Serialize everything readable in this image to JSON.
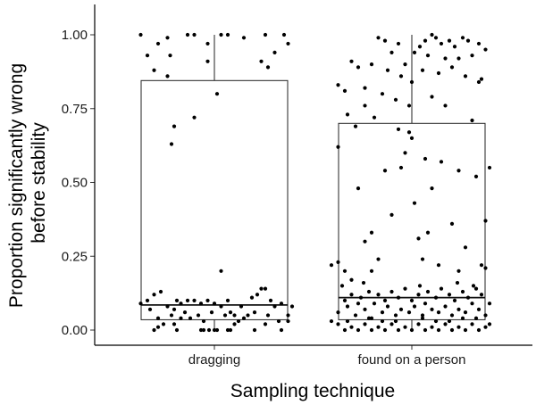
{
  "chart_data": {
    "type": "box",
    "xlabel": "Sampling technique",
    "ylabel_lines": [
      "Proportion significantly wrong",
      "before stability"
    ],
    "ylim": [
      0,
      1
    ],
    "yticks": [
      "0.00",
      "0.25",
      "0.50",
      "0.75",
      "1.00"
    ],
    "grid": false,
    "categories": [
      "dragging",
      "found on a person"
    ],
    "boxes": [
      {
        "category": "dragging",
        "q1": 0.035,
        "median": 0.085,
        "q3": 0.845,
        "whisker_low": 0.0,
        "whisker_high": 1.0
      },
      {
        "category": "found on a person",
        "q1": 0.035,
        "median": 0.11,
        "q3": 0.7,
        "whisker_low": 0.0,
        "whisker_high": 1.0
      }
    ],
    "points": [
      [
        [
          -0.55,
          1.0
        ],
        [
          -0.5,
          0.93
        ],
        [
          -0.42,
          0.97
        ],
        [
          -0.35,
          0.99
        ],
        [
          -0.33,
          0.93
        ],
        [
          -0.2,
          1.0
        ],
        [
          -0.15,
          1.0
        ],
        [
          -0.05,
          0.97
        ],
        [
          0.1,
          1.0
        ],
        [
          0.22,
          0.99
        ],
        [
          0.05,
          1.0
        ],
        [
          0.38,
          1.0
        ],
        [
          0.45,
          0.94
        ],
        [
          0.52,
          1.0
        ],
        [
          0.55,
          0.97
        ],
        [
          0.4,
          0.89
        ],
        [
          -0.45,
          0.88
        ],
        [
          -0.35,
          0.86
        ],
        [
          -0.05,
          0.91
        ],
        [
          0.35,
          0.91
        ],
        [
          0.02,
          0.8
        ],
        [
          -0.3,
          0.69
        ],
        [
          -0.32,
          0.63
        ],
        [
          -0.15,
          0.72
        ],
        [
          0.05,
          0.2
        ],
        [
          -0.55,
          0.09
        ],
        [
          -0.5,
          0.1
        ],
        [
          -0.45,
          0.12
        ],
        [
          -0.4,
          0.13
        ],
        [
          -0.35,
          0.08
        ],
        [
          -0.32,
          0.05
        ],
        [
          -0.3,
          0.07
        ],
        [
          -0.25,
          0.09
        ],
        [
          -0.22,
          0.06
        ],
        [
          -0.2,
          0.1
        ],
        [
          -0.18,
          0.04
        ],
        [
          -0.15,
          0.1
        ],
        [
          -0.12,
          0.05
        ],
        [
          -0.1,
          0.09
        ],
        [
          -0.08,
          0.03
        ],
        [
          -0.05,
          0.1
        ],
        [
          -0.02,
          0.06
        ],
        [
          0.0,
          0.09
        ],
        [
          0.05,
          0.08
        ],
        [
          0.08,
          0.05
        ],
        [
          0.1,
          0.1
        ],
        [
          0.12,
          0.06
        ],
        [
          0.15,
          0.05
        ],
        [
          0.18,
          0.03
        ],
        [
          0.2,
          0.08
        ],
        [
          0.25,
          0.05
        ],
        [
          0.28,
          0.11
        ],
        [
          0.3,
          0.06
        ],
        [
          0.32,
          0.12
        ],
        [
          0.35,
          0.14
        ],
        [
          0.38,
          0.14
        ],
        [
          0.4,
          0.05
        ],
        [
          0.42,
          0.1
        ],
        [
          0.45,
          0.08
        ],
        [
          0.5,
          0.09
        ],
        [
          0.55,
          0.05
        ],
        [
          0.58,
          0.08
        ],
        [
          -0.48,
          0.07
        ],
        [
          -0.42,
          0.04
        ],
        [
          -0.38,
          0.02
        ],
        [
          0.22,
          0.04
        ],
        [
          -0.28,
          0.1
        ],
        [
          -0.45,
          0.0
        ],
        [
          -0.42,
          0.01
        ],
        [
          -0.3,
          0.02
        ],
        [
          -0.28,
          0.0
        ],
        [
          -0.1,
          0.0
        ],
        [
          -0.08,
          0.0
        ],
        [
          -0.04,
          0.0
        ],
        [
          0.0,
          0.0
        ],
        [
          0.02,
          0.0
        ],
        [
          0.1,
          0.0
        ],
        [
          0.12,
          0.0
        ],
        [
          0.3,
          0.0
        ],
        [
          0.5,
          0.0
        ],
        [
          0.55,
          0.03
        ],
        [
          0.48,
          0.03
        ],
        [
          -0.25,
          0.04
        ],
        [
          0.15,
          0.02
        ],
        [
          0.38,
          0.02
        ]
      ],
      [
        [
          -0.25,
          0.99
        ],
        [
          -0.2,
          0.98
        ],
        [
          -0.1,
          0.97
        ],
        [
          0.02,
          0.94
        ],
        [
          0.06,
          0.96
        ],
        [
          0.1,
          0.98
        ],
        [
          0.15,
          1.0
        ],
        [
          0.18,
          0.99
        ],
        [
          0.22,
          0.97
        ],
        [
          0.28,
          0.98
        ],
        [
          0.32,
          0.96
        ],
        [
          0.38,
          0.99
        ],
        [
          0.42,
          0.98
        ],
        [
          0.5,
          0.97
        ],
        [
          0.55,
          0.95
        ],
        [
          0.12,
          0.93
        ],
        [
          -0.15,
          0.94
        ],
        [
          0.35,
          0.92
        ],
        [
          -0.05,
          0.9
        ],
        [
          0.45,
          0.93
        ],
        [
          0.25,
          0.92
        ],
        [
          -0.45,
          0.91
        ],
        [
          -0.4,
          0.89
        ],
        [
          -0.3,
          0.9
        ],
        [
          -0.18,
          0.88
        ],
        [
          -0.08,
          0.86
        ],
        [
          0.0,
          0.84
        ],
        [
          0.08,
          0.88
        ],
        [
          0.2,
          0.87
        ],
        [
          0.3,
          0.89
        ],
        [
          0.4,
          0.86
        ],
        [
          0.52,
          0.85
        ],
        [
          -0.55,
          0.83
        ],
        [
          -0.5,
          0.81
        ],
        [
          -0.35,
          0.82
        ],
        [
          -0.22,
          0.8
        ],
        [
          -0.12,
          0.78
        ],
        [
          -0.02,
          0.76
        ],
        [
          0.15,
          0.79
        ],
        [
          0.5,
          0.84
        ],
        [
          -0.48,
          0.73
        ],
        [
          -0.35,
          0.76
        ],
        [
          -0.28,
          0.72
        ],
        [
          0.25,
          0.76
        ],
        [
          0.45,
          0.71
        ],
        [
          -0.42,
          0.69
        ],
        [
          -0.1,
          0.68
        ],
        [
          -0.02,
          0.67
        ],
        [
          -0.2,
          0.54
        ],
        [
          -0.08,
          0.55
        ],
        [
          -0.05,
          0.6
        ],
        [
          0.0,
          0.65
        ],
        [
          0.1,
          0.58
        ],
        [
          0.15,
          0.48
        ],
        [
          0.22,
          0.57
        ],
        [
          0.35,
          0.54
        ],
        [
          0.48,
          0.52
        ],
        [
          -0.55,
          0.62
        ],
        [
          -0.4,
          0.48
        ],
        [
          -0.15,
          0.39
        ],
        [
          0.02,
          0.43
        ],
        [
          0.05,
          0.31
        ],
        [
          0.12,
          0.33
        ],
        [
          0.3,
          0.36
        ],
        [
          0.55,
          0.37
        ],
        [
          0.58,
          0.55
        ],
        [
          -0.3,
          0.33
        ],
        [
          -0.35,
          0.3
        ],
        [
          -0.25,
          0.24
        ],
        [
          0.08,
          0.24
        ],
        [
          0.2,
          0.22
        ],
        [
          0.4,
          0.28
        ],
        [
          0.52,
          0.22
        ],
        [
          -0.5,
          0.2
        ],
        [
          -0.45,
          0.17
        ],
        [
          -0.55,
          0.23
        ],
        [
          -0.6,
          0.22
        ],
        [
          0.55,
          0.21
        ],
        [
          0.35,
          0.2
        ],
        [
          -0.3,
          0.2
        ],
        [
          -0.55,
          0.06
        ],
        [
          -0.5,
          0.1
        ],
        [
          -0.48,
          0.08
        ],
        [
          -0.45,
          0.12
        ],
        [
          -0.42,
          0.05
        ],
        [
          -0.4,
          0.09
        ],
        [
          -0.38,
          0.11
        ],
        [
          -0.35,
          0.07
        ],
        [
          -0.32,
          0.13
        ],
        [
          -0.3,
          0.04
        ],
        [
          -0.28,
          0.09
        ],
        [
          -0.25,
          0.12
        ],
        [
          -0.22,
          0.06
        ],
        [
          -0.2,
          0.1
        ],
        [
          -0.18,
          0.08
        ],
        [
          -0.15,
          0.13
        ],
        [
          -0.12,
          0.05
        ],
        [
          -0.1,
          0.11
        ],
        [
          -0.08,
          0.07
        ],
        [
          -0.05,
          0.14
        ],
        [
          -0.02,
          0.06
        ],
        [
          0.0,
          0.1
        ],
        [
          0.02,
          0.08
        ],
        [
          0.05,
          0.12
        ],
        [
          0.08,
          0.05
        ],
        [
          0.1,
          0.09
        ],
        [
          0.12,
          0.13
        ],
        [
          0.15,
          0.07
        ],
        [
          0.18,
          0.11
        ],
        [
          0.2,
          0.06
        ],
        [
          0.22,
          0.14
        ],
        [
          0.25,
          0.08
        ],
        [
          0.28,
          0.12
        ],
        [
          0.3,
          0.05
        ],
        [
          0.32,
          0.1
        ],
        [
          0.35,
          0.07
        ],
        [
          0.38,
          0.13
        ],
        [
          0.4,
          0.06
        ],
        [
          0.42,
          0.11
        ],
        [
          0.45,
          0.09
        ],
        [
          0.48,
          0.14
        ],
        [
          0.5,
          0.07
        ],
        [
          0.52,
          0.12
        ],
        [
          0.55,
          0.05
        ],
        [
          0.58,
          0.09
        ],
        [
          -0.52,
          0.15
        ],
        [
          -0.36,
          0.16
        ],
        [
          0.06,
          0.15
        ],
        [
          0.34,
          0.16
        ],
        [
          0.46,
          0.15
        ],
        [
          -0.55,
          0.02
        ],
        [
          -0.5,
          0.0
        ],
        [
          -0.45,
          0.01
        ],
        [
          -0.4,
          0.0
        ],
        [
          -0.35,
          0.02
        ],
        [
          -0.3,
          0.0
        ],
        [
          -0.25,
          0.01
        ],
        [
          -0.2,
          0.0
        ],
        [
          -0.15,
          0.02
        ],
        [
          -0.1,
          0.0
        ],
        [
          -0.05,
          0.01
        ],
        [
          0.0,
          0.0
        ],
        [
          0.05,
          0.02
        ],
        [
          0.1,
          0.0
        ],
        [
          0.15,
          0.01
        ],
        [
          0.2,
          0.0
        ],
        [
          0.25,
          0.02
        ],
        [
          0.3,
          0.0
        ],
        [
          0.35,
          0.01
        ],
        [
          0.4,
          0.0
        ],
        [
          0.45,
          0.02
        ],
        [
          0.5,
          0.0
        ],
        [
          0.55,
          0.01
        ],
        [
          -0.48,
          0.03
        ],
        [
          -0.32,
          0.04
        ],
        [
          -0.12,
          0.03
        ],
        [
          0.08,
          0.04
        ],
        [
          0.28,
          0.03
        ],
        [
          0.48,
          0.04
        ],
        [
          -0.6,
          0.03
        ],
        [
          0.58,
          0.02
        ],
        [
          -0.22,
          0.03
        ],
        [
          0.18,
          0.03
        ],
        [
          0.38,
          0.04
        ]
      ]
    ]
  }
}
